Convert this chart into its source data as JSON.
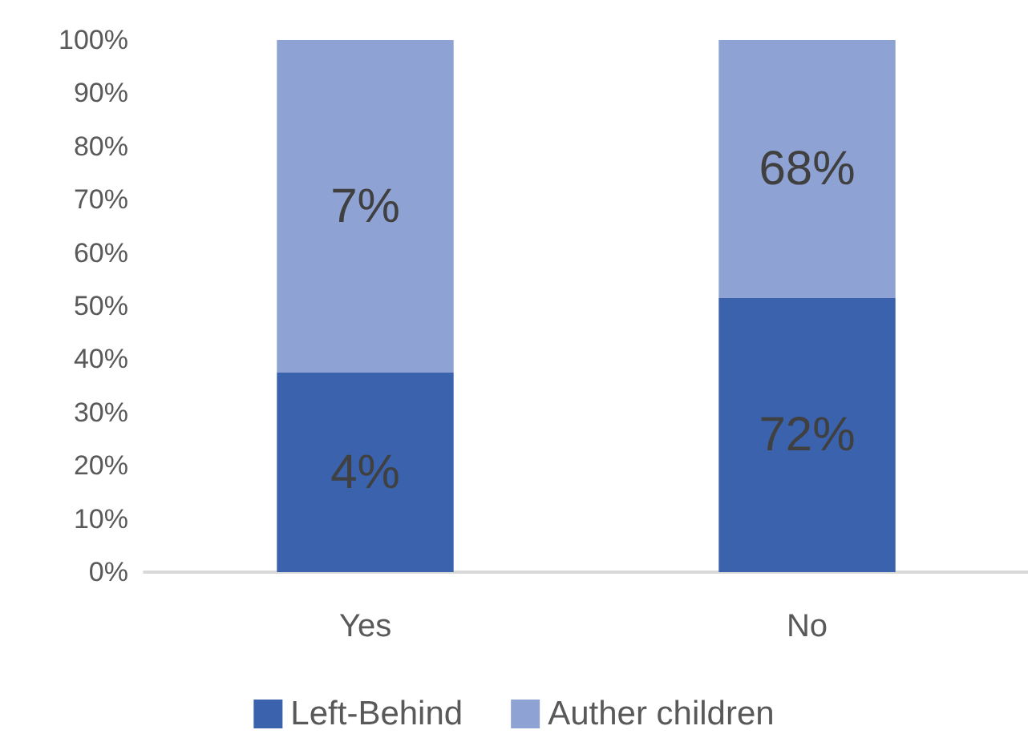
{
  "chart_data": {
    "type": "bar",
    "stacked": true,
    "categories": [
      "Yes",
      "No"
    ],
    "series": [
      {
        "name": "Left-Behind",
        "color": "#3a62ad",
        "values": [
          37.5,
          51.5
        ]
      },
      {
        "name": "Auther children",
        "color": "#8fa2d4",
        "values": [
          62.5,
          48.5
        ]
      }
    ],
    "annotations": [
      "4%",
      "72%",
      "7%",
      "68%"
    ],
    "ylim": [
      0,
      100
    ],
    "yticks": [
      {
        "value": 0,
        "label": "0%"
      },
      {
        "value": 10,
        "label": "10%"
      },
      {
        "value": 20,
        "label": "20%"
      },
      {
        "value": 30,
        "label": "30%"
      },
      {
        "value": 40,
        "label": "40%"
      },
      {
        "value": 50,
        "label": "50%"
      },
      {
        "value": 60,
        "label": "60%"
      },
      {
        "value": 70,
        "label": "70%"
      },
      {
        "value": 80,
        "label": "80%"
      },
      {
        "value": 90,
        "label": "90%"
      },
      {
        "value": 100,
        "label": "100%"
      }
    ],
    "grid": false,
    "legend": "bottom"
  }
}
